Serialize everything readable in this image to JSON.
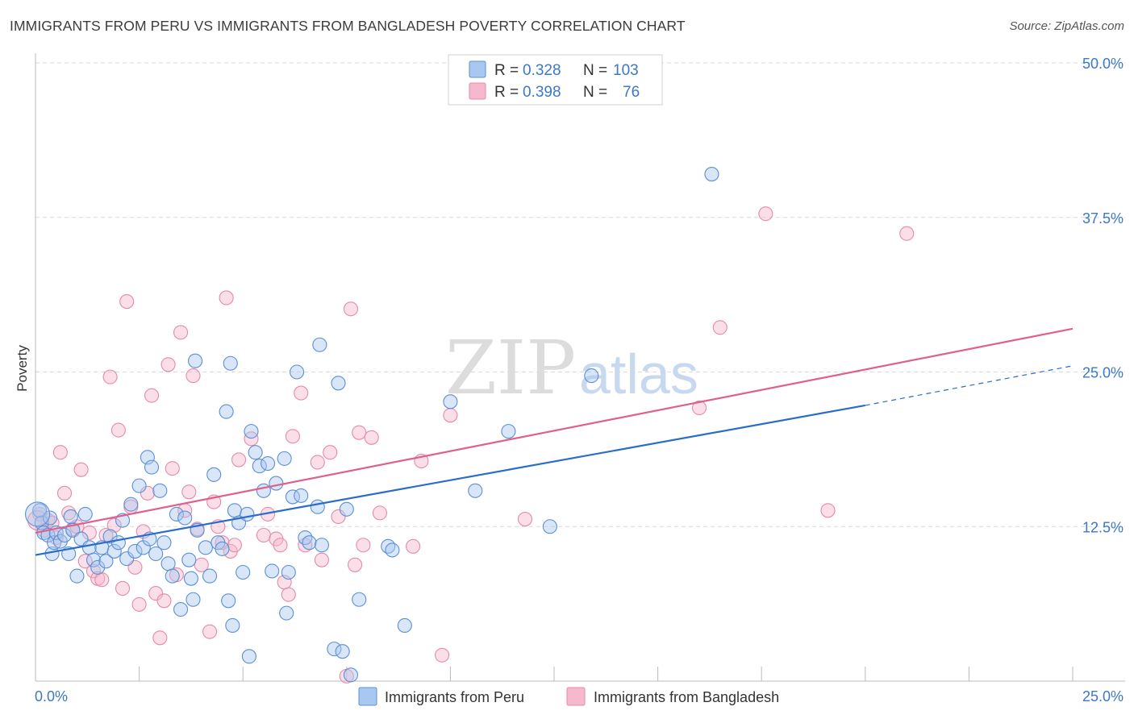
{
  "title": "IMMIGRANTS FROM PERU VS IMMIGRANTS FROM BANGLADESH POVERTY CORRELATION CHART",
  "source": "Source: ZipAtlas.com",
  "watermark": {
    "zip": "ZIP",
    "atlas": "atlas"
  },
  "legend_top": [
    {
      "r_label": "R =",
      "r_value": "0.328",
      "n_label": "N =",
      "n_value": "103"
    },
    {
      "r_label": "R =",
      "r_value": "0.398",
      "n_label": "N =",
      "n_value": "76"
    }
  ],
  "bottom_legend": [
    "Immigrants from Peru",
    "Immigrants from Bangladesh"
  ],
  "colors": {
    "peru_fill": "#a8c8f0",
    "peru_stroke": "#5b8fd6",
    "peru_line": "#2a6ccb",
    "bang_fill": "#f5b8cc",
    "bang_stroke": "#e68aa8",
    "bang_line": "#e0608c",
    "tick": "#3b78c6",
    "grid": "#d9d9d9"
  },
  "chart_data": {
    "type": "scatter",
    "title": "IMMIGRANTS FROM PERU VS IMMIGRANTS FROM BANGLADESH POVERTY CORRELATION CHART",
    "xlabel": "",
    "ylabel": "Poverty",
    "xlim": [
      0,
      25
    ],
    "ylim": [
      0,
      50
    ],
    "x_tick_labels": [
      "0.0%",
      "25.0%"
    ],
    "y_ticks": [
      12.5,
      25.0,
      37.5,
      50.0
    ],
    "y_tick_labels": [
      "12.5%",
      "25.0%",
      "37.5%",
      "50.0%"
    ],
    "grid": true,
    "legend_position": "top-center",
    "series": [
      {
        "name": "Immigrants from Peru",
        "r": 0.328,
        "n": 103,
        "trend": {
          "x0": 0,
          "y0": 10.2,
          "x1": 20.0,
          "y1": 22.3,
          "dashed_to_x": 25,
          "dashed_to_y": 25.5
        },
        "points": [
          [
            0.1,
            13.8
          ],
          [
            0.15,
            12.8
          ],
          [
            0.2,
            12.0
          ],
          [
            0.3,
            11.8
          ],
          [
            0.35,
            13.2
          ],
          [
            0.4,
            10.3
          ],
          [
            0.45,
            11.2
          ],
          [
            0.5,
            12.0
          ],
          [
            0.6,
            11.3
          ],
          [
            0.7,
            11.8
          ],
          [
            0.8,
            10.3
          ],
          [
            0.85,
            13.3
          ],
          [
            0.9,
            12.2
          ],
          [
            1.0,
            8.5
          ],
          [
            1.1,
            11.5
          ],
          [
            1.2,
            13.5
          ],
          [
            1.3,
            10.8
          ],
          [
            1.4,
            9.8
          ],
          [
            1.5,
            9.2
          ],
          [
            1.6,
            10.8
          ],
          [
            1.7,
            9.7
          ],
          [
            1.8,
            11.7
          ],
          [
            1.9,
            10.5
          ],
          [
            2.0,
            11.2
          ],
          [
            2.1,
            13.0
          ],
          [
            2.2,
            9.9
          ],
          [
            2.3,
            14.3
          ],
          [
            2.4,
            10.5
          ],
          [
            2.5,
            15.8
          ],
          [
            2.6,
            10.8
          ],
          [
            2.7,
            18.1
          ],
          [
            2.75,
            11.5
          ],
          [
            2.8,
            17.3
          ],
          [
            2.9,
            10.3
          ],
          [
            3.0,
            15.4
          ],
          [
            3.1,
            11.2
          ],
          [
            3.2,
            9.5
          ],
          [
            3.3,
            8.5
          ],
          [
            3.4,
            13.5
          ],
          [
            3.5,
            5.8
          ],
          [
            3.6,
            13.2
          ],
          [
            3.7,
            9.8
          ],
          [
            3.75,
            8.3
          ],
          [
            3.8,
            6.6
          ],
          [
            3.85,
            25.9
          ],
          [
            3.9,
            12.2
          ],
          [
            4.1,
            10.8
          ],
          [
            4.2,
            8.5
          ],
          [
            4.3,
            16.7
          ],
          [
            4.4,
            11.2
          ],
          [
            4.5,
            10.7
          ],
          [
            4.6,
            21.8
          ],
          [
            4.65,
            6.5
          ],
          [
            4.7,
            25.7
          ],
          [
            4.75,
            4.5
          ],
          [
            4.8,
            13.8
          ],
          [
            4.9,
            12.8
          ],
          [
            5.0,
            8.8
          ],
          [
            5.1,
            13.5
          ],
          [
            5.15,
            2.0
          ],
          [
            5.2,
            20.2
          ],
          [
            5.3,
            18.5
          ],
          [
            5.4,
            17.4
          ],
          [
            5.5,
            15.4
          ],
          [
            5.6,
            17.6
          ],
          [
            5.7,
            8.9
          ],
          [
            5.8,
            16.0
          ],
          [
            6.0,
            18.0
          ],
          [
            6.05,
            5.5
          ],
          [
            6.1,
            8.8
          ],
          [
            6.2,
            14.9
          ],
          [
            6.3,
            25.0
          ],
          [
            6.4,
            15.0
          ],
          [
            6.5,
            11.6
          ],
          [
            6.6,
            11.2
          ],
          [
            6.8,
            14.1
          ],
          [
            6.85,
            27.2
          ],
          [
            6.9,
            11.0
          ],
          [
            7.2,
            2.6
          ],
          [
            7.3,
            24.1
          ],
          [
            7.4,
            2.4
          ],
          [
            7.5,
            13.9
          ],
          [
            7.6,
            0.5
          ],
          [
            7.8,
            6.6
          ],
          [
            8.5,
            10.9
          ],
          [
            8.6,
            10.6
          ],
          [
            8.9,
            4.5
          ],
          [
            10.0,
            22.6
          ],
          [
            10.6,
            15.4
          ],
          [
            11.4,
            20.2
          ],
          [
            12.4,
            12.5
          ],
          [
            13.4,
            24.7
          ],
          [
            16.3,
            41.0
          ]
        ]
      },
      {
        "name": "Immigrants from Bangladesh",
        "r": 0.398,
        "n": 76,
        "trend": {
          "x0": 0,
          "y0": 12.0,
          "x1": 25,
          "y1": 28.5
        },
        "points": [
          [
            0.1,
            13.5
          ],
          [
            0.2,
            12.2
          ],
          [
            0.3,
            13.0
          ],
          [
            0.4,
            12.8
          ],
          [
            0.5,
            11.6
          ],
          [
            0.6,
            18.5
          ],
          [
            0.7,
            15.2
          ],
          [
            0.8,
            13.6
          ],
          [
            0.9,
            12.3
          ],
          [
            1.0,
            12.5
          ],
          [
            1.1,
            17.1
          ],
          [
            1.2,
            9.7
          ],
          [
            1.3,
            12.0
          ],
          [
            1.4,
            8.9
          ],
          [
            1.5,
            8.3
          ],
          [
            1.6,
            8.2
          ],
          [
            1.7,
            11.8
          ],
          [
            1.8,
            24.6
          ],
          [
            1.9,
            12.6
          ],
          [
            2.0,
            20.3
          ],
          [
            2.1,
            7.5
          ],
          [
            2.2,
            30.7
          ],
          [
            2.3,
            14.1
          ],
          [
            2.4,
            9.2
          ],
          [
            2.5,
            6.2
          ],
          [
            2.6,
            12.1
          ],
          [
            2.7,
            15.2
          ],
          [
            2.8,
            23.1
          ],
          [
            2.9,
            7.1
          ],
          [
            3.0,
            3.5
          ],
          [
            3.1,
            6.5
          ],
          [
            3.2,
            25.6
          ],
          [
            3.3,
            17.2
          ],
          [
            3.4,
            8.6
          ],
          [
            3.5,
            28.2
          ],
          [
            3.6,
            13.8
          ],
          [
            3.7,
            15.3
          ],
          [
            3.8,
            24.7
          ],
          [
            3.9,
            12.3
          ],
          [
            4.0,
            9.4
          ],
          [
            4.2,
            4.0
          ],
          [
            4.3,
            14.5
          ],
          [
            4.4,
            12.5
          ],
          [
            4.5,
            11.2
          ],
          [
            4.6,
            31.0
          ],
          [
            4.7,
            10.5
          ],
          [
            4.8,
            11.0
          ],
          [
            4.9,
            17.9
          ],
          [
            5.2,
            19.6
          ],
          [
            5.5,
            11.8
          ],
          [
            5.6,
            13.5
          ],
          [
            5.8,
            11.5
          ],
          [
            5.9,
            11.0
          ],
          [
            6.0,
            8.0
          ],
          [
            6.1,
            7.0
          ],
          [
            6.2,
            19.8
          ],
          [
            6.4,
            23.3
          ],
          [
            6.5,
            11.0
          ],
          [
            6.8,
            17.7
          ],
          [
            6.9,
            9.8
          ],
          [
            7.1,
            18.5
          ],
          [
            7.3,
            13.3
          ],
          [
            7.5,
            0.4
          ],
          [
            7.6,
            30.1
          ],
          [
            7.7,
            9.4
          ],
          [
            7.8,
            20.1
          ],
          [
            7.9,
            11.0
          ],
          [
            8.1,
            19.7
          ],
          [
            8.3,
            13.6
          ],
          [
            9.1,
            10.9
          ],
          [
            9.3,
            17.8
          ],
          [
            9.8,
            2.1
          ],
          [
            10.0,
            21.5
          ],
          [
            11.8,
            13.1
          ],
          [
            16.0,
            22.1
          ],
          [
            16.5,
            28.6
          ],
          [
            17.6,
            37.8
          ],
          [
            19.1,
            13.8
          ],
          [
            21.0,
            36.2
          ]
        ]
      }
    ]
  }
}
